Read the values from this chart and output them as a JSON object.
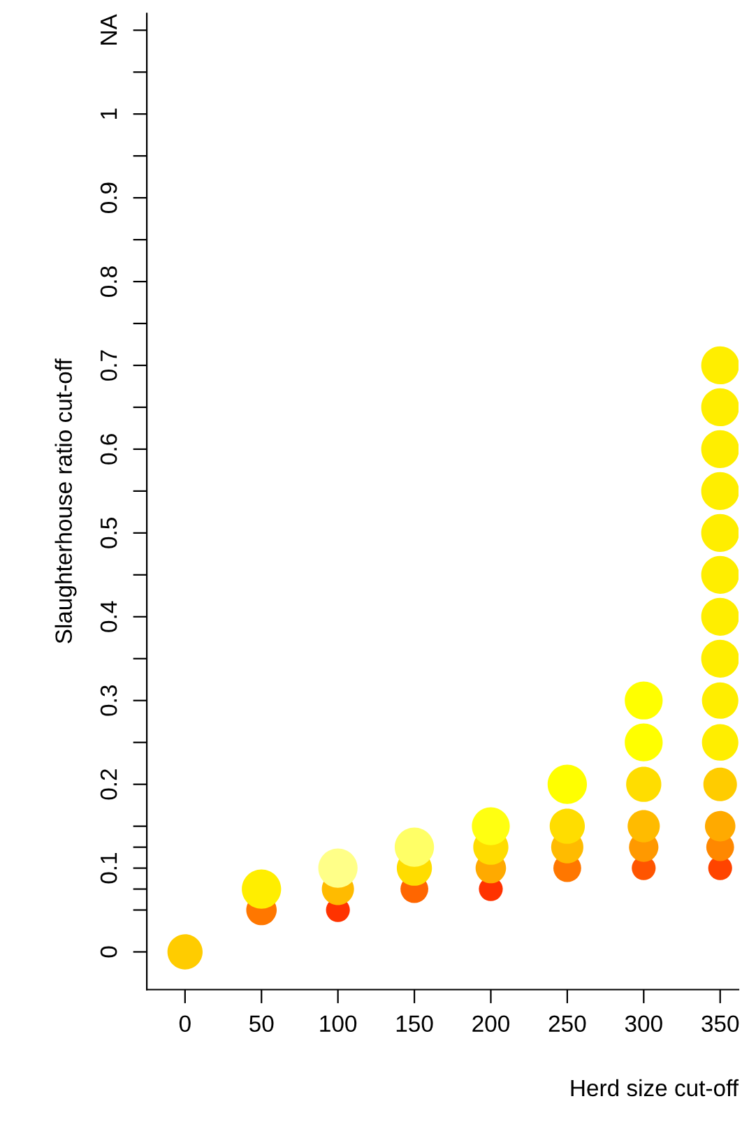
{
  "chart_data": {
    "type": "bubble",
    "xlabel": "Herd size cut-off",
    "ylabel": "Slaughterhouse ratio cut-off",
    "xlim": [
      -25,
      362
    ],
    "ylim": [
      -0.045,
      1.12
    ],
    "xticks": [
      0,
      50,
      100,
      150,
      200,
      250,
      300,
      350
    ],
    "yticks": [
      0,
      {
        "value": 0.05,
        "label": null
      },
      {
        "value": 0.075,
        "label": null
      },
      0.1,
      {
        "value": 0.125,
        "label": null
      },
      {
        "value": 0.15,
        "label": null
      },
      0.2,
      {
        "value": 0.25,
        "label": null
      },
      0.3,
      {
        "value": 0.35,
        "label": null
      },
      0.4,
      {
        "value": 0.45,
        "label": null
      },
      0.5,
      {
        "value": 0.55,
        "label": null
      },
      0.6,
      {
        "value": 0.65,
        "label": null
      },
      0.7,
      {
        "value": 0.75,
        "label": null
      },
      0.8,
      {
        "value": 0.85,
        "label": null
      },
      0.9,
      {
        "value": 0.95,
        "label": null
      },
      1,
      {
        "value": 1.05,
        "label": null
      },
      {
        "value": 1.1,
        "label": "NA"
      }
    ],
    "grid": false,
    "legend": false,
    "series": [
      {
        "x": [
          0,
          50,
          50,
          100,
          100,
          100,
          150,
          150,
          150,
          200,
          200,
          200,
          200,
          250,
          250,
          250,
          250,
          300,
          300,
          300,
          300,
          300,
          300,
          350,
          350,
          350,
          350,
          350,
          350,
          350,
          350,
          350,
          350,
          350,
          350,
          350,
          350
        ],
        "values": [
          0,
          0.05,
          0.075,
          0.05,
          0.075,
          0.1,
          0.075,
          0.1,
          0.125,
          0.075,
          0.1,
          0.125,
          0.15,
          0.1,
          0.125,
          0.15,
          0.2,
          0.1,
          0.125,
          0.15,
          0.2,
          0.25,
          0.3,
          0.1,
          0.125,
          0.15,
          0.2,
          0.25,
          0.3,
          0.35,
          0.4,
          0.45,
          0.5,
          0.55,
          0.6,
          0.65,
          0.7
        ],
        "sizes": [
          0.8,
          0.6,
          1,
          0.37,
          0.67,
          1,
          0.5,
          0.8,
          1,
          0.37,
          0.6,
          0.8,
          0.93,
          0.5,
          0.67,
          0.8,
          1,
          0.37,
          0.56,
          0.67,
          0.8,
          0.93,
          0.93,
          0.37,
          0.5,
          0.6,
          0.73,
          0.86,
          0.86,
          0.93,
          0.93,
          0.93,
          0.93,
          0.93,
          0.93,
          0.93,
          0.93
        ],
        "colors": [
          "#ffcc00",
          "#ff7700",
          "#ffee00",
          "#ff3300",
          "#ffbb00",
          "#ffff88",
          "#ff6600",
          "#ffdd00",
          "#ffff66",
          "#ff3300",
          "#ffaa00",
          "#ffdd00",
          "#ffff11",
          "#ff7700",
          "#ffbb00",
          "#ffdd00",
          "#ffff00",
          "#ff5500",
          "#ff9900",
          "#ffbb00",
          "#ffdd00",
          "#ffff00",
          "#ffff00",
          "#ff4400",
          "#ff8800",
          "#ffaa00",
          "#ffcc00",
          "#ffee00",
          "#ffee00",
          "#ffee00",
          "#ffee00",
          "#ffee00",
          "#ffee00",
          "#ffee00",
          "#ffee00",
          "#ffee00",
          "#ffee00"
        ]
      }
    ]
  }
}
